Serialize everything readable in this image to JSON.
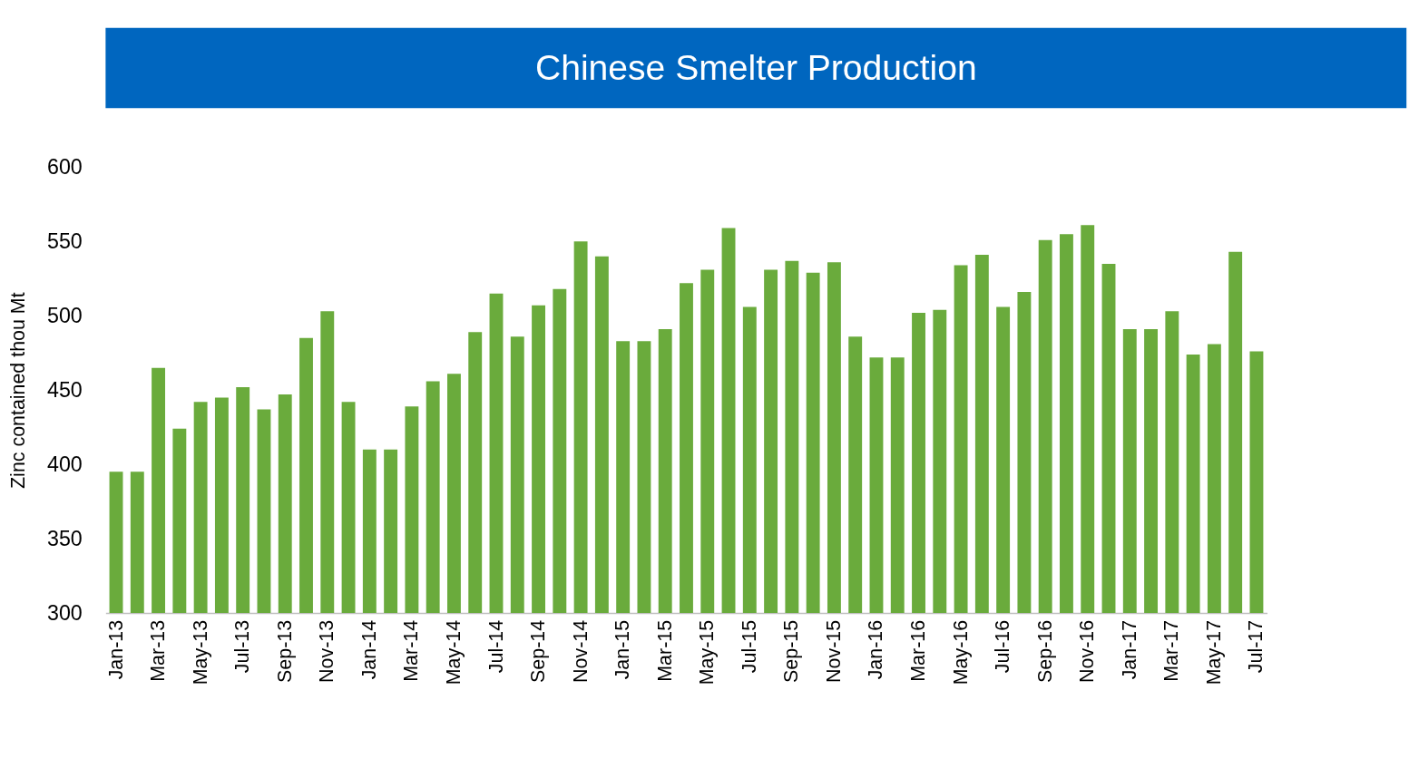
{
  "chart_data": {
    "type": "bar",
    "title": "Chinese Smelter Production",
    "ylabel": "Zinc contained thou Mt",
    "categories": [
      "Jan-13",
      null,
      "Mar-13",
      null,
      "May-13",
      null,
      "Jul-13",
      null,
      "Sep-13",
      null,
      "Nov-13",
      null,
      "Jan-14",
      null,
      "Mar-14",
      null,
      "May-14",
      null,
      "Jul-14",
      null,
      "Sep-14",
      null,
      "Nov-14",
      null,
      "Jan-15",
      null,
      "Mar-15",
      null,
      "May-15",
      null,
      "Jul-15",
      null,
      "Sep-15",
      null,
      "Nov-15",
      null,
      "Jan-16",
      null,
      "Mar-16",
      null,
      "May-16",
      null,
      "Jul-16",
      null,
      "Sep-16",
      null,
      "Nov-16",
      null,
      "Jan-17",
      null,
      "Mar-17",
      null,
      "May-17",
      null,
      "Jul-17"
    ],
    "values": [
      395,
      395,
      465,
      424,
      442,
      445,
      452,
      437,
      447,
      485,
      503,
      442,
      410,
      410,
      439,
      456,
      461,
      489,
      515,
      486,
      507,
      518,
      550,
      540,
      483,
      483,
      491,
      522,
      531,
      559,
      506,
      531,
      537,
      529,
      536,
      486,
      472,
      472,
      502,
      504,
      534,
      541,
      506,
      516,
      551,
      555,
      561,
      535,
      491,
      491,
      503,
      474,
      481,
      543,
      476
    ],
    "color": "#6aab3c",
    "ylim": [
      300,
      600
    ],
    "yticks": [
      300,
      350,
      400,
      450,
      500,
      550,
      600
    ],
    "grid": false
  }
}
